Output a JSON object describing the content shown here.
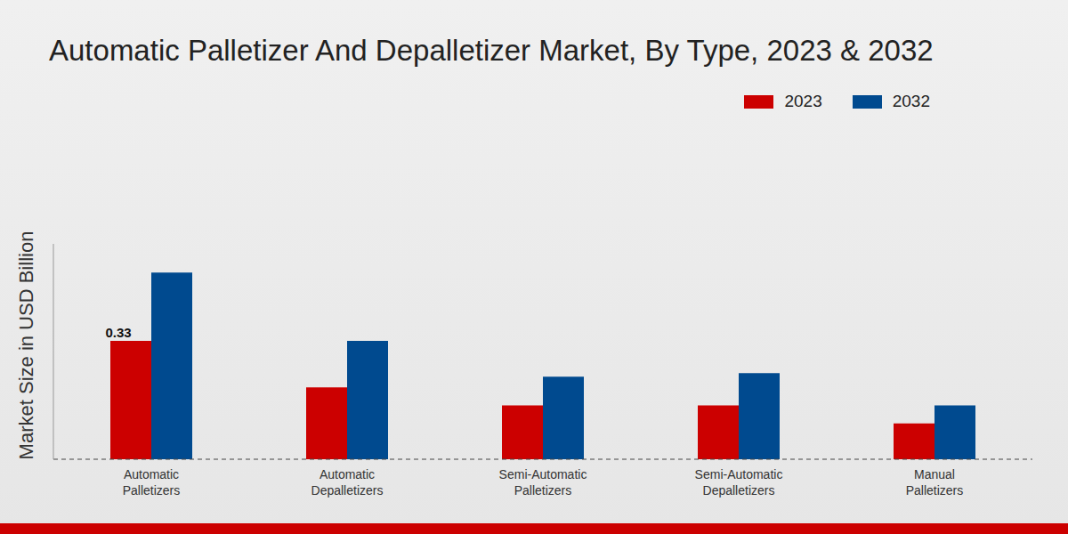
{
  "chart_data": {
    "type": "bar",
    "title": "Automatic Palletizer And Depalletizer Market, By Type, 2023 & 2032",
    "y_label": "Market Size in USD Billion",
    "categories": [
      "Automatic Palletizers",
      "Automatic Depalletizers",
      "Semi-Automatic Palletizers",
      "Semi-Automatic Depalletizers",
      "Manual Palletizers"
    ],
    "series": [
      {
        "name": "2023",
        "color": "#cc0000",
        "values": [
          0.33,
          0.2,
          0.15,
          0.15,
          0.1
        ],
        "data_labels": true,
        "value_labels": [
          "0.33",
          null,
          null,
          null,
          null
        ]
      },
      {
        "name": "2032",
        "color": "#004a8f",
        "values": [
          0.52,
          0.33,
          0.23,
          0.24,
          0.15
        ]
      }
    ],
    "ylim": [
      0,
      0.6
    ],
    "grid": false,
    "legend": "top right",
    "tick_labels": "x"
  }
}
